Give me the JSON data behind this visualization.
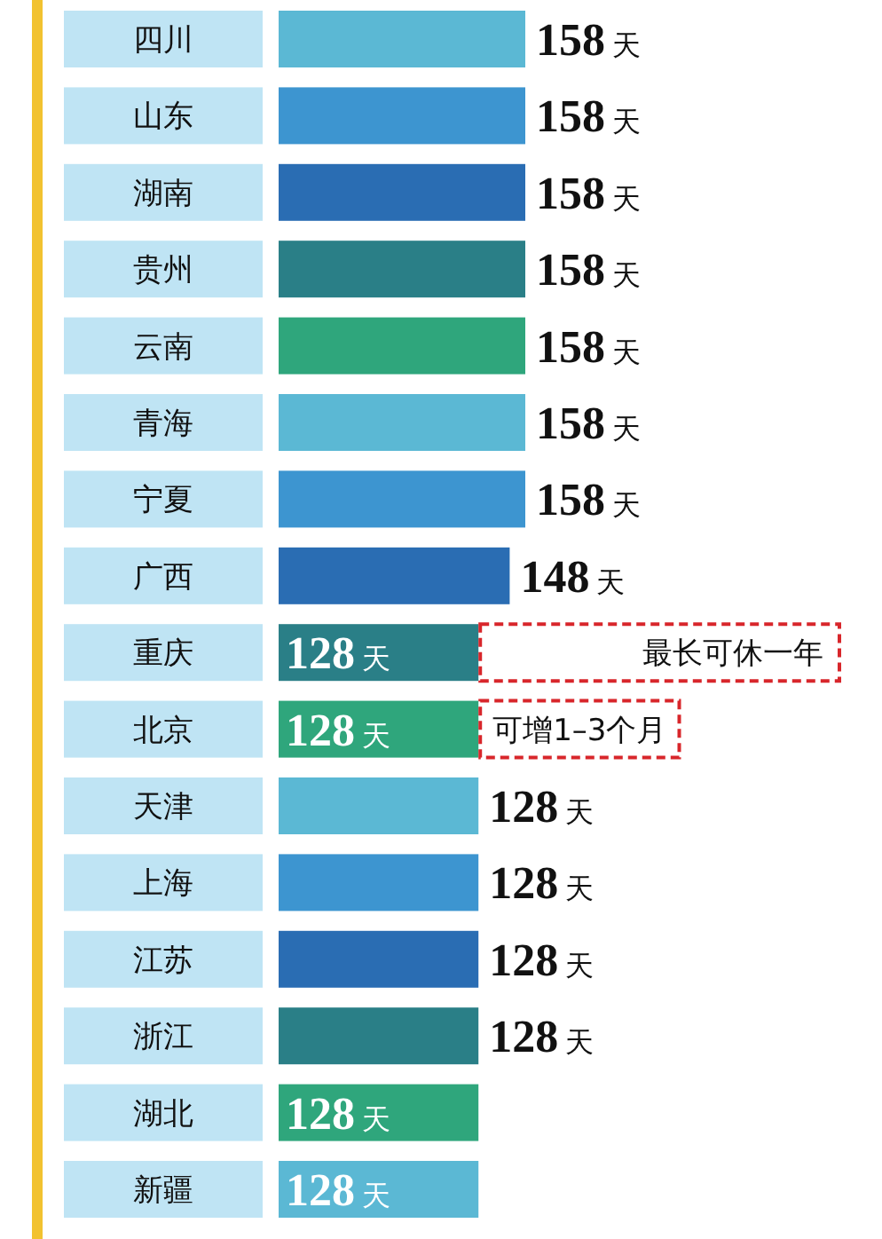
{
  "chart_data": {
    "type": "bar",
    "orientation": "horizontal",
    "categories": [
      "四川",
      "山东",
      "湖南",
      "贵州",
      "云南",
      "青海",
      "宁夏",
      "广西",
      "重庆",
      "北京",
      "天津",
      "上海",
      "江苏",
      "浙江",
      "湖北",
      "新疆"
    ],
    "values": [
      158,
      158,
      158,
      158,
      158,
      158,
      158,
      148,
      128,
      128,
      128,
      128,
      128,
      128,
      128,
      128
    ],
    "value_labels": [
      "158天",
      "158天",
      "158天",
      "158天",
      "158天",
      "158天",
      "158天",
      "148天",
      "128天",
      "128天",
      "128天",
      "128天",
      "128天",
      "128天",
      "128天",
      "128天"
    ],
    "colors": [
      "#5bb8d4",
      "#3d95d0",
      "#2a6db3",
      "#2a7f87",
      "#2fa67c",
      "#5bb8d4",
      "#3d95d0",
      "#2a6db3",
      "#2a7f87",
      "#2fa67c",
      "#5bb8d4",
      "#3d95d0",
      "#2a6db3",
      "#2a7f87",
      "#2fa67c",
      "#5bb8d4"
    ],
    "annotations": [
      "最长可休一年",
      "可增1–3个月"
    ]
  }
}
